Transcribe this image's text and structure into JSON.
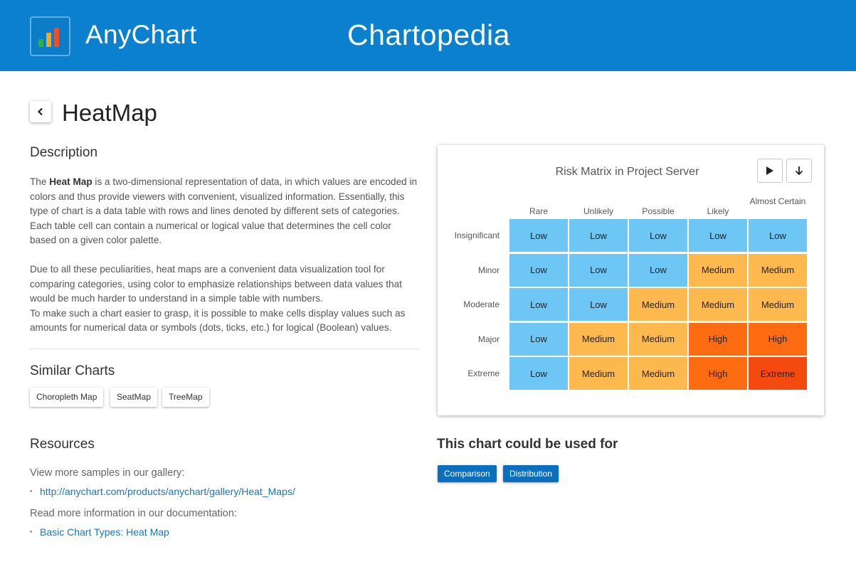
{
  "header": {
    "brand": "AnyChart",
    "site_title": "Chartopedia",
    "logo_icon": "bar-chart-logo-icon"
  },
  "page": {
    "title": "HeatMap",
    "back_icon": "chevron-left-icon"
  },
  "description": {
    "heading": "Description",
    "p1_intro": "The ",
    "p1_bold": "Heat Map",
    "p1_rest": " is a two-dimensional representation of data, in which values are encoded in colors and thus provide viewers with convenient, visualized information. Essentially, this type of chart is a data table with rows and lines denoted by different sets of categories. Each table cell can contain a numerical or logical value that determines the cell color based on a given color palette.",
    "p2": "Due to all these peculiarities, heat maps are a convenient data visualization tool for comparing categories, using color to emphasize relationships between data values that would be much harder to understand in a simple table with numbers.",
    "p3": "To make such a chart easier to grasp, it is possible to make cells display values such as amounts for numerical data or symbols (dots, ticks, etc.) for logical (Boolean) values."
  },
  "similar": {
    "heading": "Similar Charts",
    "items": [
      "Choropleth Map",
      "SeatMap",
      "TreeMap"
    ]
  },
  "resources": {
    "heading": "Resources",
    "gallery_text": "View more samples in our gallery:",
    "gallery_link": "http://anychart.com/products/anychart/gallery/Heat_Maps/",
    "docs_text": "Read more information in our documentation:",
    "docs_link": "Basic Chart Types: Heat Map"
  },
  "usage": {
    "heading": "This chart could be used for",
    "tags": [
      "Comparison",
      "Distribution"
    ]
  },
  "chart_toolbar": {
    "play_icon": "play-icon",
    "download_icon": "download-arrow-icon"
  },
  "colors": {
    "header": "#0a80cf",
    "Low": "#6ec6f5",
    "Medium": "#fdb94e",
    "High": "#fd6c10",
    "Extreme": "#f44a0f",
    "tag": "#0a6fbd"
  },
  "chart_data": {
    "type": "heatmap",
    "title": "Risk Matrix in Project Server",
    "columns": [
      "Rare",
      "Unlikely",
      "Possible",
      "Likely",
      "Almost Certain"
    ],
    "rows": [
      "Insignificant",
      "Minor",
      "Moderate",
      "Major",
      "Extreme"
    ],
    "values": [
      [
        "Low",
        "Low",
        "Low",
        "Low",
        "Low"
      ],
      [
        "Low",
        "Low",
        "Low",
        "Medium",
        "Medium"
      ],
      [
        "Low",
        "Low",
        "Medium",
        "Medium",
        "Medium"
      ],
      [
        "Low",
        "Medium",
        "Medium",
        "High",
        "High"
      ],
      [
        "Low",
        "Medium",
        "Medium",
        "High",
        "Extreme"
      ]
    ]
  }
}
